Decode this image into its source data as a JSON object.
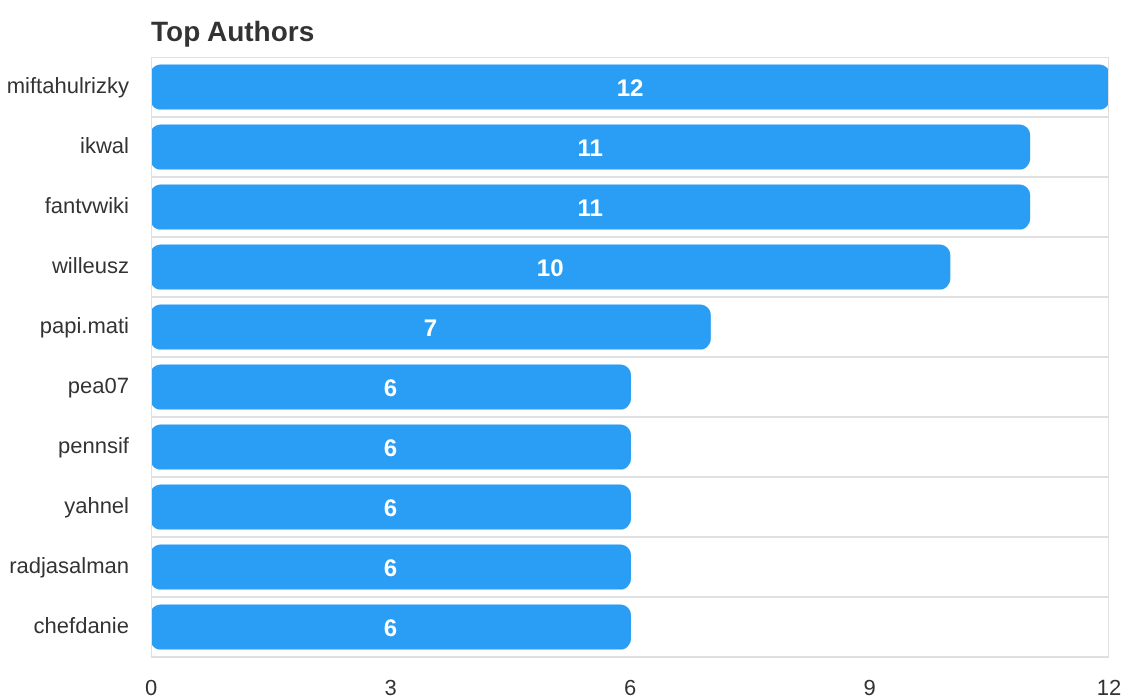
{
  "chart_data": {
    "type": "bar",
    "orientation": "horizontal",
    "title": "Top Authors",
    "categories": [
      "miftahulrizky",
      "ikwal",
      "fantvwiki",
      "willeusz",
      "papi.mati",
      "pea07",
      "pennsif",
      "yahnel",
      "radjasalman",
      "chefdanie"
    ],
    "values": [
      12,
      11,
      11,
      10,
      7,
      6,
      6,
      6,
      6,
      6
    ],
    "color": "#2a9df4",
    "xlim": [
      0,
      12
    ],
    "xticks": [
      0,
      3,
      6,
      9,
      12
    ],
    "grid": "y",
    "data_labels": true
  }
}
